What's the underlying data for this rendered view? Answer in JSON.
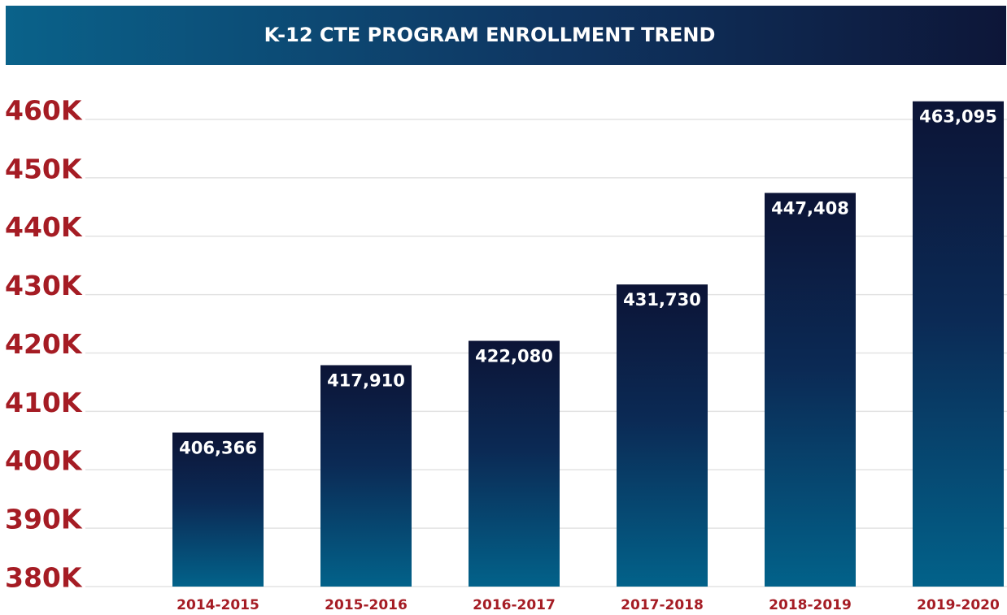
{
  "chart_data": {
    "type": "bar",
    "title": "K-12 CTE PROGRAM ENROLLMENT TREND",
    "categories": [
      "2014-2015",
      "2015-2016",
      "2016-2017",
      "2017-2018",
      "2018-2019",
      "2019-2020"
    ],
    "values": [
      406366,
      417910,
      422080,
      431730,
      447408,
      463095
    ],
    "value_labels": [
      "406,366",
      "417,910",
      "422,080",
      "431,730",
      "447,408",
      "463,095"
    ],
    "ylim": [
      380000,
      465000
    ],
    "yticks": [
      {
        "value": 380000,
        "label": "380K"
      },
      {
        "value": 390000,
        "label": "390K"
      },
      {
        "value": 400000,
        "label": "400K"
      },
      {
        "value": 410000,
        "label": "410K"
      },
      {
        "value": 420000,
        "label": "420K"
      },
      {
        "value": 430000,
        "label": "430K"
      },
      {
        "value": 440000,
        "label": "440K"
      },
      {
        "value": 450000,
        "label": "450K"
      },
      {
        "value": 460000,
        "label": "460K"
      }
    ],
    "grid": true
  }
}
